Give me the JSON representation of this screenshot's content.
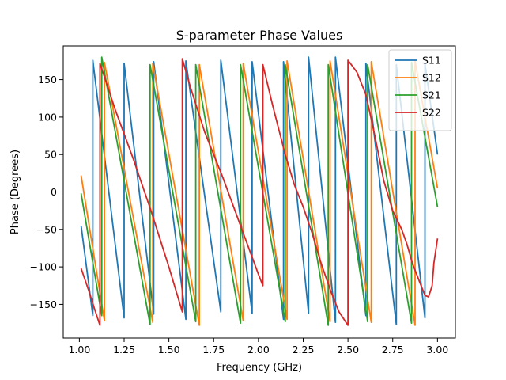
{
  "chart_data": {
    "type": "line",
    "title": "S-parameter Phase Values",
    "xlabel": "Frequency (GHz)",
    "ylabel": "Phase (Degrees)",
    "xlim": [
      0.91,
      3.1
    ],
    "ylim": [
      -195,
      195
    ],
    "xticks": [
      1.0,
      1.25,
      1.5,
      1.75,
      2.0,
      2.25,
      2.5,
      2.75,
      3.0
    ],
    "xtick_labels": [
      "1.00",
      "1.25",
      "1.50",
      "1.75",
      "2.00",
      "2.25",
      "2.50",
      "2.75",
      "3.00"
    ],
    "yticks": [
      -150,
      -100,
      -50,
      0,
      50,
      100,
      150
    ],
    "ytick_labels": [
      "−150",
      "−100",
      "−50",
      "0",
      "50",
      "100",
      "150"
    ],
    "grid": false,
    "legend_position": "top-right",
    "series": [
      {
        "name": "S11",
        "color": "#1f77b4",
        "wraps": [
          1.075,
          1.25,
          1.415,
          1.595,
          1.79,
          1.965,
          2.14,
          2.28,
          2.43,
          2.6,
          2.77,
          2.93
        ],
        "x": [
          1.01,
          1.075,
          1.075,
          1.25,
          1.25,
          1.415,
          1.415,
          1.595,
          1.595,
          1.79,
          1.79,
          1.965,
          1.965,
          2.14,
          2.14,
          2.28,
          2.28,
          2.43,
          2.43,
          2.6,
          2.6,
          2.77,
          2.77,
          2.93,
          2.93,
          3.0
        ],
        "y": [
          -45,
          -165,
          176,
          -168,
          172,
          -163,
          174,
          -170,
          175,
          -160,
          176,
          -162,
          174,
          -170,
          174,
          -162,
          180,
          -174,
          180,
          -165,
          172,
          -177,
          170,
          -168,
          172,
          50
        ]
      },
      {
        "name": "S12",
        "color": "#ff7f0e",
        "wraps": [
          1.14,
          1.41,
          1.67,
          1.915,
          2.16,
          2.4,
          2.63,
          2.875
        ],
        "x": [
          1.01,
          1.14,
          1.14,
          1.41,
          1.41,
          1.67,
          1.67,
          1.915,
          1.915,
          2.16,
          2.16,
          2.4,
          2.4,
          2.63,
          2.63,
          2.875,
          2.875,
          3.0
        ],
        "y": [
          22,
          -172,
          173,
          -174,
          172,
          -178,
          170,
          -172,
          172,
          -170,
          175,
          -173,
          175,
          -174,
          174,
          -178,
          175,
          5
        ]
      },
      {
        "name": "S21",
        "color": "#2ca02c",
        "wraps": [
          1.125,
          1.395,
          1.65,
          1.9,
          2.15,
          2.39,
          2.61,
          2.855
        ],
        "x": [
          1.01,
          1.125,
          1.125,
          1.395,
          1.395,
          1.65,
          1.65,
          1.9,
          1.9,
          2.15,
          2.15,
          2.39,
          2.39,
          2.61,
          2.61,
          2.855,
          2.855,
          3.0
        ],
        "y": [
          -2,
          -165,
          180,
          -177,
          170,
          -173,
          170,
          -175,
          170,
          -173,
          170,
          -178,
          170,
          -173,
          170,
          -175,
          173,
          -20
        ]
      },
      {
        "name": "S22",
        "color": "#d62728",
        "wraps": [
          1.115,
          1.575,
          2.025,
          2.5
        ],
        "x": [
          1.01,
          1.05,
          1.09,
          1.115,
          1.115,
          1.2,
          1.3,
          1.4,
          1.5,
          1.575,
          1.575,
          1.62,
          1.7,
          1.8,
          1.9,
          2.0,
          2.025,
          2.025,
          2.08,
          2.15,
          2.2,
          2.25,
          2.3,
          2.35,
          2.4,
          2.45,
          2.5,
          2.5,
          2.55,
          2.6,
          2.65,
          2.7,
          2.75,
          2.8,
          2.83,
          2.86,
          2.9,
          2.93,
          2.95,
          2.97,
          2.98,
          3.0
        ],
        "y": [
          -102,
          -130,
          -160,
          -178,
          172,
          110,
          45,
          -25,
          -100,
          -160,
          178,
          140,
          80,
          20,
          -45,
          -110,
          -125,
          170,
          115,
          50,
          10,
          -20,
          -55,
          -95,
          -130,
          -160,
          -178,
          176,
          160,
          130,
          75,
          15,
          -25,
          -50,
          -70,
          -95,
          -120,
          -138,
          -140,
          -125,
          -95,
          -62
        ]
      }
    ]
  }
}
